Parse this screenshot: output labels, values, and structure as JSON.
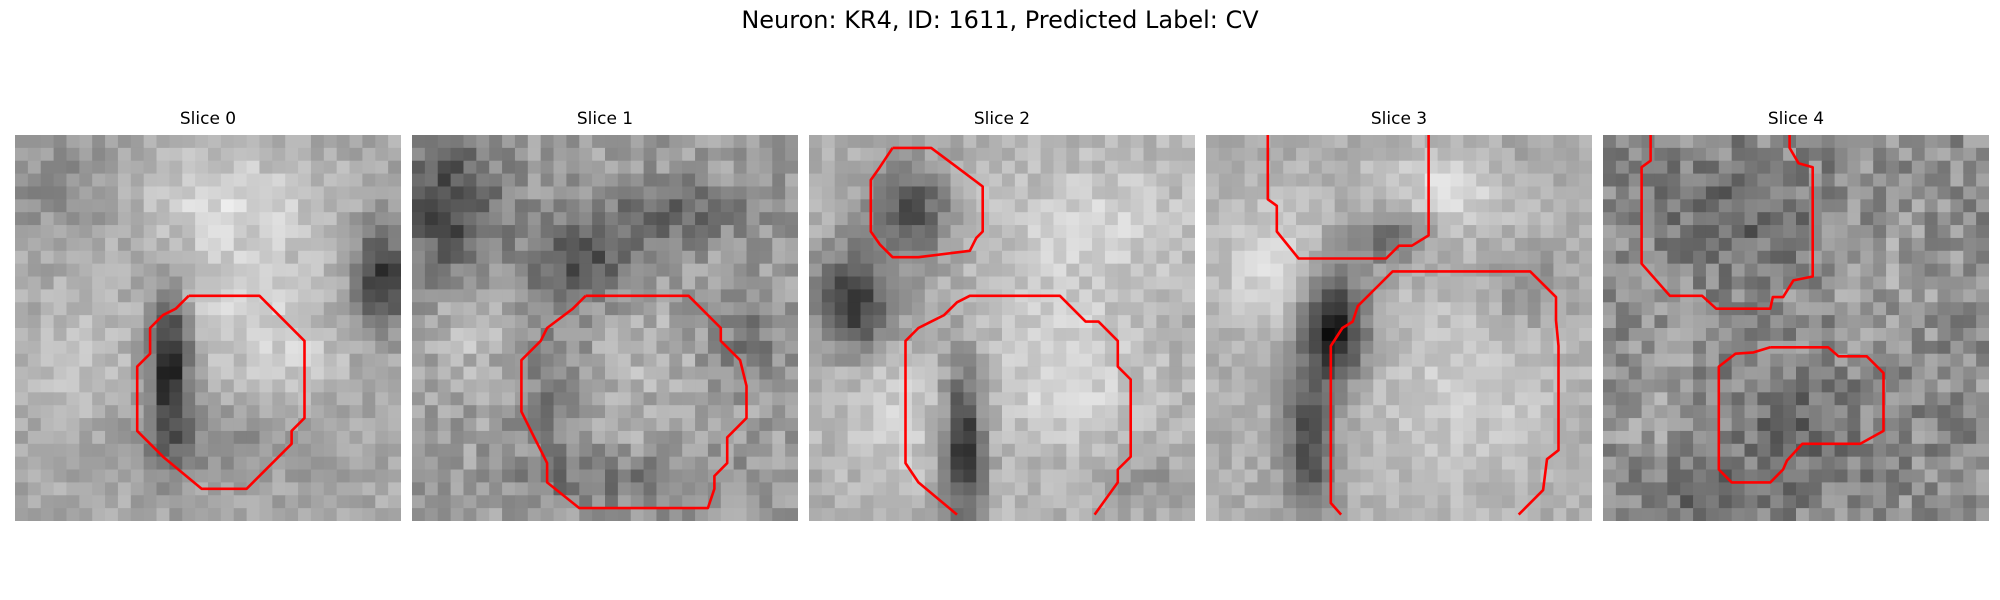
{
  "figure": {
    "title": "Neuron: KR4, ID: 1611, Predicted Label: CV"
  },
  "panels": [
    {
      "title": "Slice 0"
    },
    {
      "title": "Slice 1"
    },
    {
      "title": "Slice 2"
    },
    {
      "title": "Slice 3"
    },
    {
      "title": "Slice 4"
    }
  ],
  "colors": {
    "contour": "#ff0000",
    "background": "#ffffff"
  }
}
